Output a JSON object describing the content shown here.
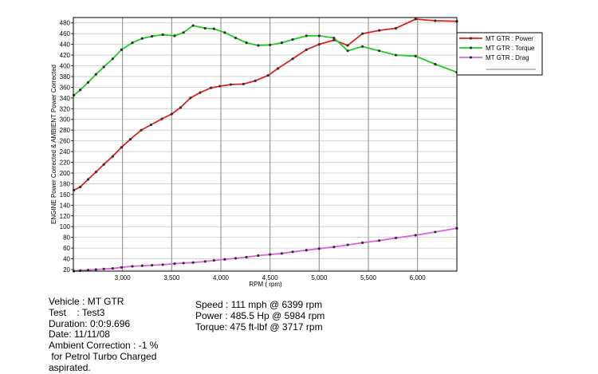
{
  "chart_data": {
    "type": "line",
    "xlabel": "RPM ( rpm)",
    "ylabel": "ENGINE Power Corrected & AMBIENT Power Corrected",
    "xlim": [
      2500,
      6400
    ],
    "ylim": [
      17,
      490
    ],
    "xticks": [
      3000,
      3500,
      4000,
      4500,
      5000,
      5500,
      6000
    ],
    "xtick_labels": [
      "3,000",
      "3,500",
      "4,000",
      "4,500",
      "5,000",
      "5,500",
      "6,000"
    ],
    "yticks": [
      20,
      40,
      60,
      80,
      100,
      120,
      140,
      160,
      180,
      200,
      220,
      240,
      260,
      280,
      300,
      320,
      340,
      360,
      380,
      400,
      420,
      440,
      460,
      480
    ],
    "ytick_labels": [
      "20",
      "40",
      "60",
      "80",
      "100",
      "120",
      "140",
      "160",
      "180",
      "200",
      "220",
      "240",
      "260",
      "280",
      "300",
      "320",
      "340",
      "360",
      "380",
      "400",
      "420",
      "440",
      "460",
      "480"
    ],
    "grid": true,
    "legend_position": "top-right, outside plot",
    "series": [
      {
        "name": "MT GTR : Power",
        "color": "#e02020",
        "x": [
          2505,
          2570,
          2650,
          2730,
          2810,
          2900,
          2990,
          3080,
          3190,
          3290,
          3400,
          3500,
          3590,
          3690,
          3790,
          3900,
          3990,
          4100,
          4230,
          4350,
          4480,
          4580,
          4730,
          4870,
          5000,
          5150,
          5290,
          5440,
          5610,
          5780,
          5980,
          6180,
          6400
        ],
        "y": [
          168,
          174,
          188,
          202,
          216,
          231,
          248,
          263,
          280,
          290,
          301,
          310,
          322,
          340,
          350,
          359,
          362,
          365,
          366,
          372,
          382,
          395,
          413,
          430,
          440,
          448,
          438,
          460,
          466,
          470,
          487,
          484,
          483
        ]
      },
      {
        "name": "MT GTR : Torque",
        "color": "#20cc20",
        "x": [
          2505,
          2570,
          2650,
          2730,
          2810,
          2900,
          2990,
          3100,
          3200,
          3300,
          3410,
          3530,
          3620,
          3717,
          3840,
          3930,
          4040,
          4150,
          4260,
          4380,
          4500,
          4620,
          4730,
          4870,
          5000,
          5150,
          5290,
          5440,
          5610,
          5780,
          5980,
          6180,
          6400
        ],
        "y": [
          345,
          355,
          369,
          384,
          398,
          413,
          430,
          443,
          451,
          455,
          458,
          456,
          462,
          475,
          470,
          469,
          462,
          452,
          443,
          438,
          439,
          443,
          449,
          456,
          456,
          452,
          428,
          436,
          428,
          420,
          418,
          403,
          388
        ]
      },
      {
        "name": "MT GTR : Drag",
        "color": "#e060e0",
        "x": [
          2505,
          2570,
          2650,
          2730,
          2810,
          2900,
          2990,
          3100,
          3200,
          3300,
          3410,
          3530,
          3620,
          3717,
          3840,
          3930,
          4040,
          4150,
          4260,
          4380,
          4500,
          4620,
          4730,
          4870,
          5000,
          5150,
          5290,
          5440,
          5610,
          5780,
          5980,
          6180,
          6400
        ],
        "y": [
          17,
          18,
          19,
          20,
          21,
          22,
          24,
          26,
          27,
          28,
          29,
          31,
          32,
          33,
          35,
          37,
          39,
          41,
          43,
          46,
          48,
          50,
          53,
          56,
          59,
          62,
          66,
          70,
          74,
          79,
          84,
          90,
          97
        ]
      }
    ]
  },
  "info": {
    "vehicle": "Vehicle : MT GTR",
    "test": "Test    : Test3",
    "duration": "Duration: 0:0:9.696",
    "date": "Date: 11/11/08",
    "ambient": "Ambient Correction : -1 %",
    "petrol": " for Petrol Turbo Charged",
    "aspirated": "aspirated."
  },
  "summary": {
    "speed": "Speed : 111 mph @ 6399 rpm",
    "power": "Power : 485.5 Hp @ 5984 rpm",
    "torque": "Torque: 475 ft-lbf @ 3717 rpm"
  }
}
